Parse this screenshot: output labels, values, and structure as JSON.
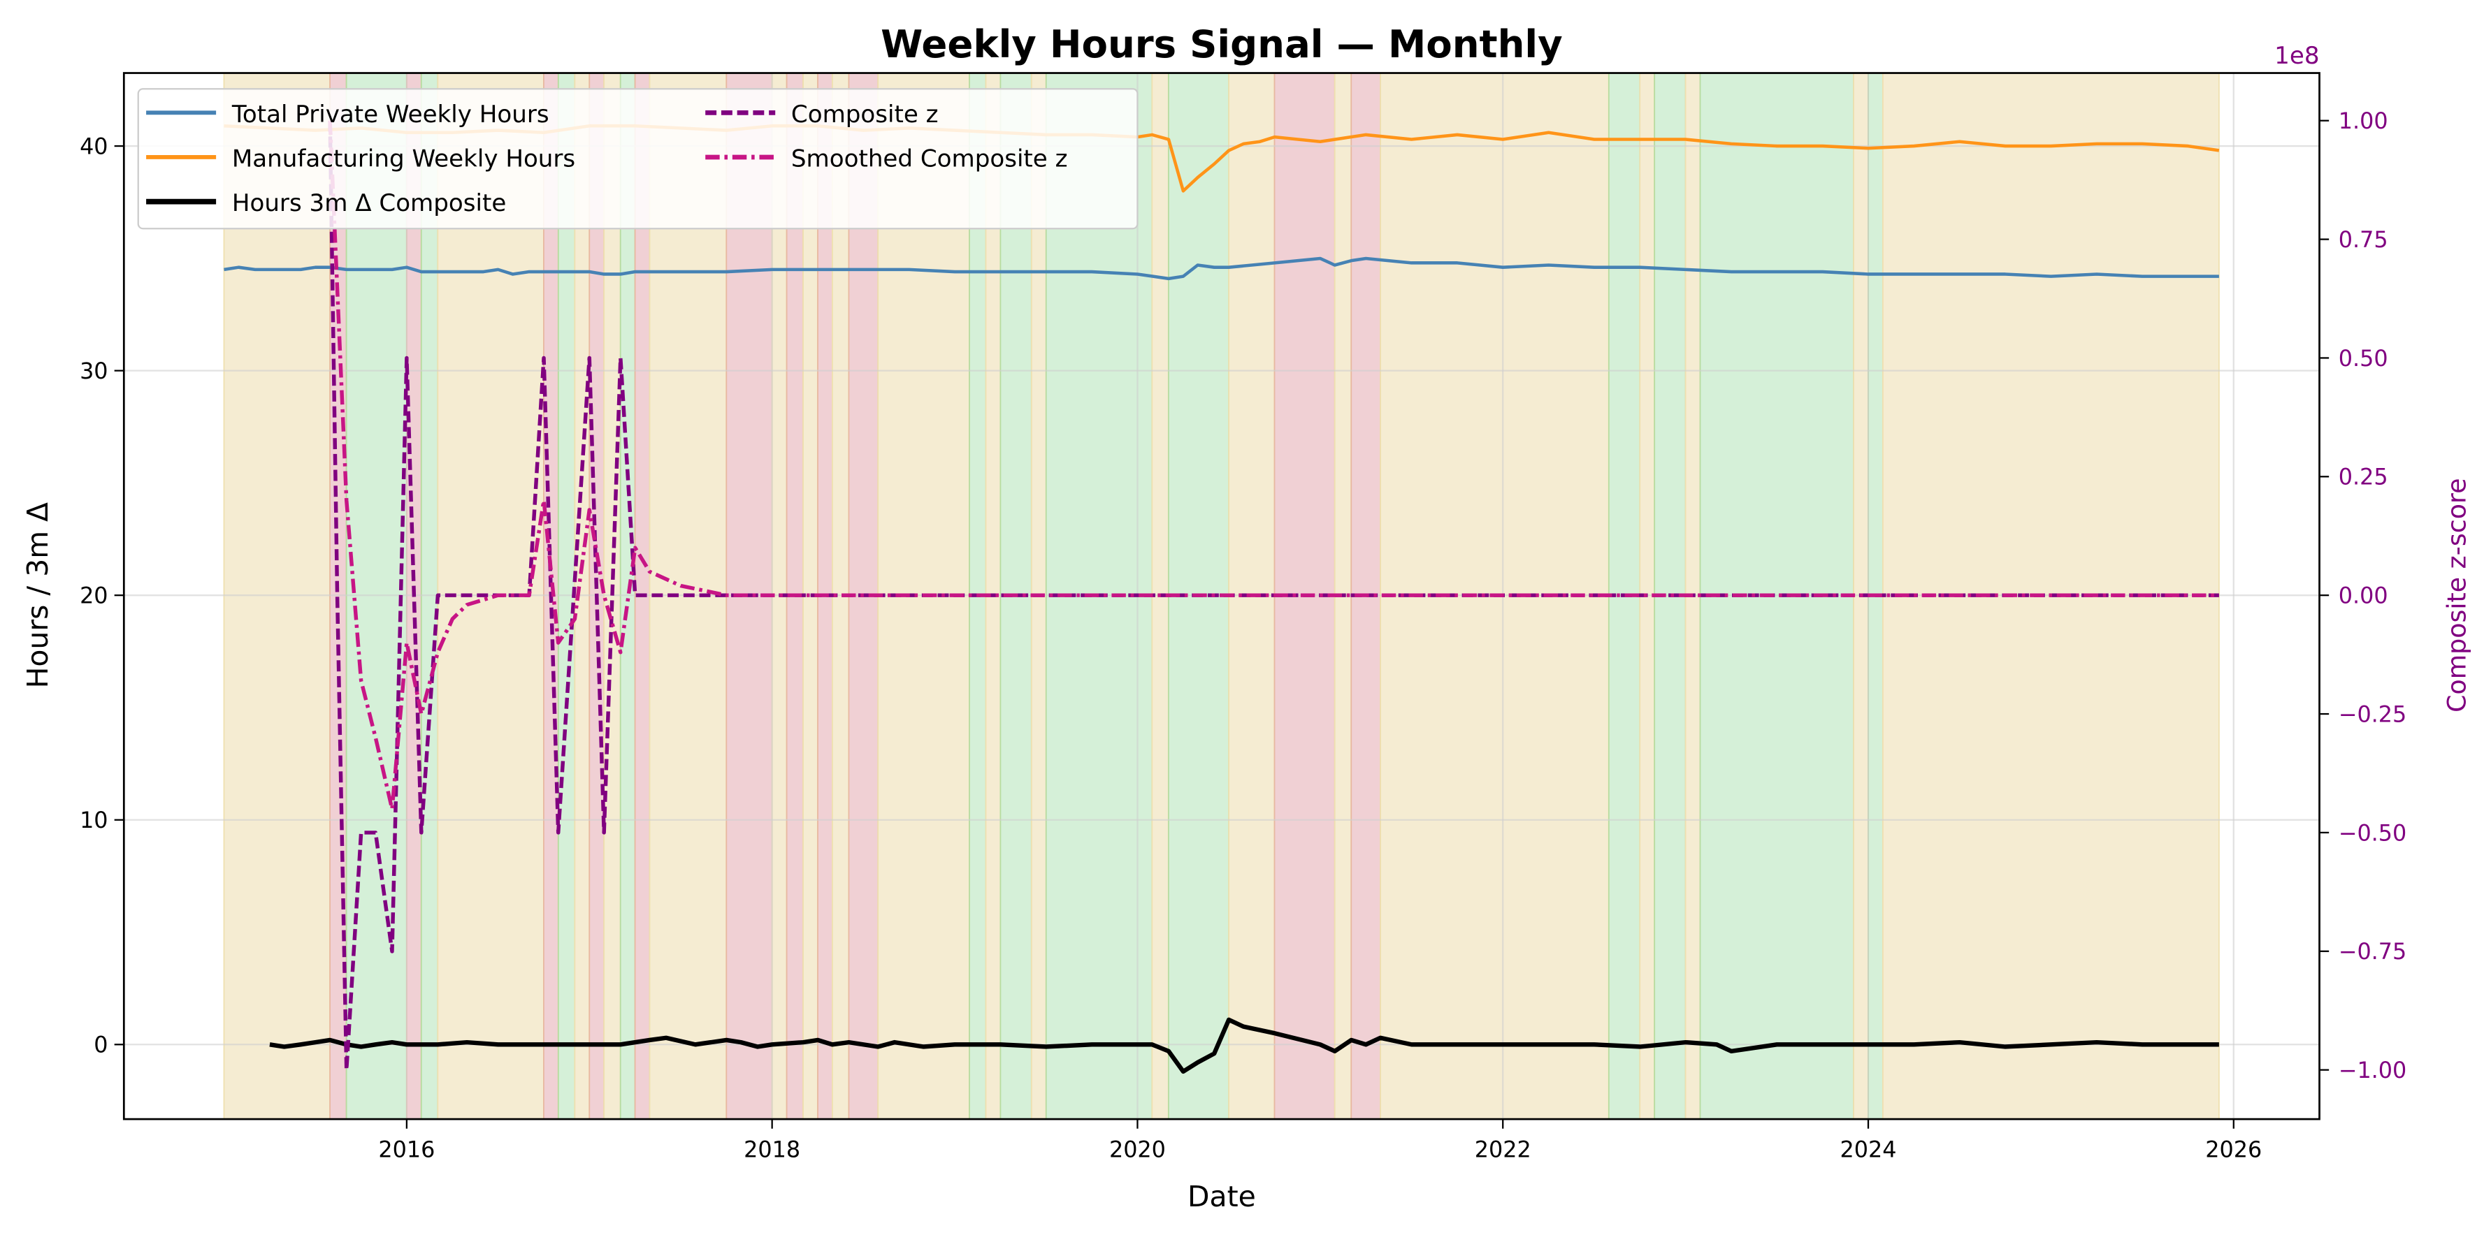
{
  "chart_data": {
    "type": "line",
    "title": "Weekly Hours Signal — Monthly",
    "xlabel": "Date",
    "ylabel": "Hours / 3m Δ",
    "ylabel_right": "Composite z-score",
    "right_axis_offset_text": "1e8",
    "xlim": [
      2014.58,
      2026.45
    ],
    "ylim": [
      -3.3,
      43.2
    ],
    "ylim_right": [
      -1.1,
      1.1
    ],
    "x_ticks": [
      2016,
      2018,
      2020,
      2022,
      2024,
      2026
    ],
    "x_tick_labels": [
      "2016",
      "2018",
      "2020",
      "2022",
      "2024",
      "2026"
    ],
    "y_ticks": [
      0,
      10,
      20,
      30,
      40
    ],
    "y_tick_labels": [
      "0",
      "10",
      "20",
      "30",
      "40"
    ],
    "y_right_ticks": [
      -1.0,
      -0.75,
      -0.5,
      -0.25,
      0.0,
      0.25,
      0.5,
      0.75,
      1.0
    ],
    "y_right_tick_labels": [
      "−1.00",
      "−0.75",
      "−0.50",
      "−0.25",
      "0.00",
      "0.25",
      "0.50",
      "0.75",
      "1.00"
    ],
    "grid": true,
    "legend_position": "upper left",
    "colors": {
      "total_private": "#4682b4",
      "manufacturing": "#ff9418",
      "hours_delta": "#000000",
      "composite_z": "#800080",
      "smoothed_z": "#c71585",
      "regime_neutral": "#f5ecd2",
      "regime_expansion": "#d5f0d8",
      "regime_contraction": "#f0d0d4",
      "right_axis": "#800080"
    },
    "series": [
      {
        "name": "Total Private Weekly Hours",
        "axis": "left",
        "style": "solid",
        "x": [
          2015.0,
          2015.08,
          2015.17,
          2015.25,
          2015.33,
          2015.42,
          2015.5,
          2015.58,
          2015.67,
          2015.75,
          2015.83,
          2015.92,
          2016.0,
          2016.08,
          2016.17,
          2016.25,
          2016.33,
          2016.42,
          2016.5,
          2016.58,
          2016.67,
          2016.75,
          2016.83,
          2016.92,
          2017.0,
          2017.08,
          2017.17,
          2017.25,
          2017.5,
          2017.75,
          2018.0,
          2018.25,
          2018.5,
          2018.75,
          2019.0,
          2019.25,
          2019.5,
          2019.75,
          2020.0,
          2020.17,
          2020.25,
          2020.33,
          2020.42,
          2020.5,
          2020.75,
          2021.0,
          2021.08,
          2021.17,
          2021.25,
          2021.5,
          2021.75,
          2022.0,
          2022.25,
          2022.5,
          2022.75,
          2023.0,
          2023.25,
          2023.5,
          2023.75,
          2024.0,
          2024.25,
          2024.5,
          2024.75,
          2025.0,
          2025.25,
          2025.5,
          2025.75,
          2025.92
        ],
        "values": [
          34.5,
          34.6,
          34.5,
          34.5,
          34.5,
          34.5,
          34.6,
          34.6,
          34.5,
          34.5,
          34.5,
          34.5,
          34.6,
          34.4,
          34.4,
          34.4,
          34.4,
          34.4,
          34.5,
          34.3,
          34.4,
          34.4,
          34.4,
          34.4,
          34.4,
          34.3,
          34.3,
          34.4,
          34.4,
          34.4,
          34.5,
          34.5,
          34.5,
          34.5,
          34.4,
          34.4,
          34.4,
          34.4,
          34.3,
          34.1,
          34.2,
          34.7,
          34.6,
          34.6,
          34.8,
          35.0,
          34.7,
          34.9,
          35.0,
          34.8,
          34.8,
          34.6,
          34.7,
          34.6,
          34.6,
          34.5,
          34.4,
          34.4,
          34.4,
          34.3,
          34.3,
          34.3,
          34.3,
          34.2,
          34.3,
          34.2,
          34.2,
          34.2
        ]
      },
      {
        "name": "Manufacturing Weekly Hours",
        "axis": "left",
        "style": "solid",
        "x": [
          2015.0,
          2015.25,
          2015.5,
          2015.75,
          2016.0,
          2016.25,
          2016.5,
          2016.75,
          2017.0,
          2017.25,
          2017.5,
          2017.75,
          2018.0,
          2018.25,
          2018.5,
          2018.75,
          2019.0,
          2019.25,
          2019.5,
          2019.75,
          2020.0,
          2020.08,
          2020.17,
          2020.25,
          2020.33,
          2020.42,
          2020.5,
          2020.58,
          2020.67,
          2020.75,
          2021.0,
          2021.25,
          2021.5,
          2021.75,
          2022.0,
          2022.25,
          2022.5,
          2022.75,
          2023.0,
          2023.25,
          2023.5,
          2023.75,
          2024.0,
          2024.25,
          2024.5,
          2024.75,
          2025.0,
          2025.25,
          2025.5,
          2025.75,
          2025.92
        ],
        "values": [
          40.9,
          40.8,
          40.7,
          40.8,
          40.6,
          40.6,
          40.7,
          40.6,
          40.9,
          40.9,
          40.8,
          40.7,
          40.9,
          40.9,
          40.7,
          40.8,
          40.7,
          40.6,
          40.5,
          40.5,
          40.4,
          40.5,
          40.3,
          38.0,
          38.6,
          39.2,
          39.8,
          40.1,
          40.2,
          40.4,
          40.2,
          40.5,
          40.3,
          40.5,
          40.3,
          40.6,
          40.3,
          40.3,
          40.3,
          40.1,
          40.0,
          40.0,
          39.9,
          40.0,
          40.2,
          40.0,
          40.0,
          40.1,
          40.1,
          40.0,
          39.8
        ]
      },
      {
        "name": "Hours 3m Δ Composite",
        "axis": "left",
        "style": "solid-thick",
        "x": [
          2015.25,
          2015.33,
          2015.42,
          2015.5,
          2015.58,
          2015.67,
          2015.75,
          2015.83,
          2015.92,
          2016.0,
          2016.17,
          2016.33,
          2016.5,
          2016.67,
          2016.83,
          2017.0,
          2017.17,
          2017.33,
          2017.42,
          2017.58,
          2017.75,
          2017.83,
          2017.92,
          2018.0,
          2018.17,
          2018.25,
          2018.33,
          2018.42,
          2018.58,
          2018.67,
          2018.83,
          2019.0,
          2019.25,
          2019.5,
          2019.75,
          2020.0,
          2020.08,
          2020.17,
          2020.25,
          2020.33,
          2020.42,
          2020.5,
          2020.58,
          2020.75,
          2021.0,
          2021.08,
          2021.17,
          2021.25,
          2021.33,
          2021.5,
          2021.75,
          2022.0,
          2022.25,
          2022.5,
          2022.75,
          2023.0,
          2023.17,
          2023.25,
          2023.5,
          2023.75,
          2024.0,
          2024.25,
          2024.5,
          2024.75,
          2025.0,
          2025.25,
          2025.5,
          2025.75,
          2025.92
        ],
        "values": [
          0.0,
          -0.1,
          0.0,
          0.1,
          0.2,
          0.0,
          -0.1,
          0.0,
          0.1,
          0.0,
          0.0,
          0.1,
          0.0,
          0.0,
          0.0,
          0.0,
          0.0,
          0.2,
          0.3,
          0.0,
          0.2,
          0.1,
          -0.1,
          0.0,
          0.1,
          0.2,
          0.0,
          0.1,
          -0.1,
          0.1,
          -0.1,
          0.0,
          0.0,
          -0.1,
          0.0,
          0.0,
          0.0,
          -0.3,
          -1.2,
          -0.8,
          -0.4,
          1.1,
          0.8,
          0.5,
          0.0,
          -0.3,
          0.2,
          0.0,
          0.3,
          0.0,
          0.0,
          0.0,
          0.0,
          0.0,
          -0.1,
          0.1,
          0.0,
          -0.3,
          0.0,
          0.0,
          0.0,
          0.0,
          0.1,
          -0.1,
          0.0,
          0.1,
          0.0,
          0.0,
          0.0
        ]
      },
      {
        "name": "Composite z",
        "axis": "right",
        "style": "dashed",
        "x": [
          2015.58,
          2015.62,
          2015.67,
          2015.75,
          2015.83,
          2015.92,
          2016.0,
          2016.08,
          2016.17,
          2016.25,
          2016.5,
          2016.67,
          2016.75,
          2016.83,
          2017.0,
          2017.08,
          2017.17,
          2017.25,
          2017.33,
          2017.5,
          2018.0,
          2025.92
        ],
        "values": [
          1.0,
          0.0,
          -1.0,
          -0.5,
          -0.5,
          -0.75,
          0.5,
          -0.5,
          0.0,
          0.0,
          0.0,
          0.0,
          0.5,
          -0.5,
          0.5,
          -0.5,
          0.5,
          0.0,
          0.0,
          0.0,
          0.0,
          0.0
        ]
      },
      {
        "name": "Smoothed Composite z",
        "axis": "right",
        "style": "dashdot",
        "x": [
          2015.58,
          2015.67,
          2015.75,
          2015.83,
          2015.92,
          2016.0,
          2016.08,
          2016.17,
          2016.25,
          2016.33,
          2016.5,
          2016.67,
          2016.75,
          2016.83,
          2016.92,
          2017.0,
          2017.08,
          2017.17,
          2017.25,
          2017.33,
          2017.5,
          2017.75,
          2018.0,
          2025.92
        ],
        "values": [
          1.0,
          0.2,
          -0.18,
          -0.3,
          -0.45,
          -0.1,
          -0.25,
          -0.12,
          -0.05,
          -0.02,
          0.0,
          0.0,
          0.2,
          -0.1,
          -0.05,
          0.18,
          0.0,
          -0.12,
          0.1,
          0.05,
          0.02,
          0.0,
          0.0,
          0.0
        ]
      }
    ],
    "regime_bands": [
      {
        "start": 2015.0,
        "end": 2015.58,
        "regime": "neutral"
      },
      {
        "start": 2015.58,
        "end": 2015.67,
        "regime": "contraction"
      },
      {
        "start": 2015.67,
        "end": 2016.0,
        "regime": "expansion"
      },
      {
        "start": 2016.0,
        "end": 2016.08,
        "regime": "contraction"
      },
      {
        "start": 2016.08,
        "end": 2016.17,
        "regime": "expansion"
      },
      {
        "start": 2016.17,
        "end": 2016.75,
        "regime": "neutral"
      },
      {
        "start": 2016.75,
        "end": 2016.83,
        "regime": "contraction"
      },
      {
        "start": 2016.83,
        "end": 2016.92,
        "regime": "expansion"
      },
      {
        "start": 2016.92,
        "end": 2017.0,
        "regime": "neutral"
      },
      {
        "start": 2017.0,
        "end": 2017.08,
        "regime": "contraction"
      },
      {
        "start": 2017.08,
        "end": 2017.17,
        "regime": "neutral"
      },
      {
        "start": 2017.17,
        "end": 2017.25,
        "regime": "expansion"
      },
      {
        "start": 2017.25,
        "end": 2017.33,
        "regime": "contraction"
      },
      {
        "start": 2017.33,
        "end": 2017.75,
        "regime": "neutral"
      },
      {
        "start": 2017.75,
        "end": 2018.0,
        "regime": "contraction"
      },
      {
        "start": 2018.0,
        "end": 2018.08,
        "regime": "neutral"
      },
      {
        "start": 2018.08,
        "end": 2018.17,
        "regime": "contraction"
      },
      {
        "start": 2018.17,
        "end": 2018.25,
        "regime": "neutral"
      },
      {
        "start": 2018.25,
        "end": 2018.33,
        "regime": "contraction"
      },
      {
        "start": 2018.33,
        "end": 2018.42,
        "regime": "neutral"
      },
      {
        "start": 2018.42,
        "end": 2018.58,
        "regime": "contraction"
      },
      {
        "start": 2018.58,
        "end": 2019.08,
        "regime": "neutral"
      },
      {
        "start": 2019.08,
        "end": 2019.17,
        "regime": "expansion"
      },
      {
        "start": 2019.17,
        "end": 2019.25,
        "regime": "neutral"
      },
      {
        "start": 2019.25,
        "end": 2019.42,
        "regime": "expansion"
      },
      {
        "start": 2019.42,
        "end": 2019.5,
        "regime": "neutral"
      },
      {
        "start": 2019.5,
        "end": 2020.08,
        "regime": "expansion"
      },
      {
        "start": 2020.08,
        "end": 2020.17,
        "regime": "neutral"
      },
      {
        "start": 2020.17,
        "end": 2020.5,
        "regime": "expansion"
      },
      {
        "start": 2020.5,
        "end": 2020.75,
        "regime": "neutral"
      },
      {
        "start": 2020.75,
        "end": 2021.08,
        "regime": "contraction"
      },
      {
        "start": 2021.08,
        "end": 2021.17,
        "regime": "neutral"
      },
      {
        "start": 2021.17,
        "end": 2021.33,
        "regime": "contraction"
      },
      {
        "start": 2021.33,
        "end": 2022.58,
        "regime": "neutral"
      },
      {
        "start": 2022.58,
        "end": 2022.75,
        "regime": "expansion"
      },
      {
        "start": 2022.75,
        "end": 2022.83,
        "regime": "neutral"
      },
      {
        "start": 2022.83,
        "end": 2023.0,
        "regime": "expansion"
      },
      {
        "start": 2023.0,
        "end": 2023.08,
        "regime": "neutral"
      },
      {
        "start": 2023.08,
        "end": 2023.92,
        "regime": "expansion"
      },
      {
        "start": 2023.92,
        "end": 2024.0,
        "regime": "neutral"
      },
      {
        "start": 2024.0,
        "end": 2024.08,
        "regime": "expansion"
      },
      {
        "start": 2024.08,
        "end": 2025.92,
        "regime": "neutral"
      }
    ]
  }
}
